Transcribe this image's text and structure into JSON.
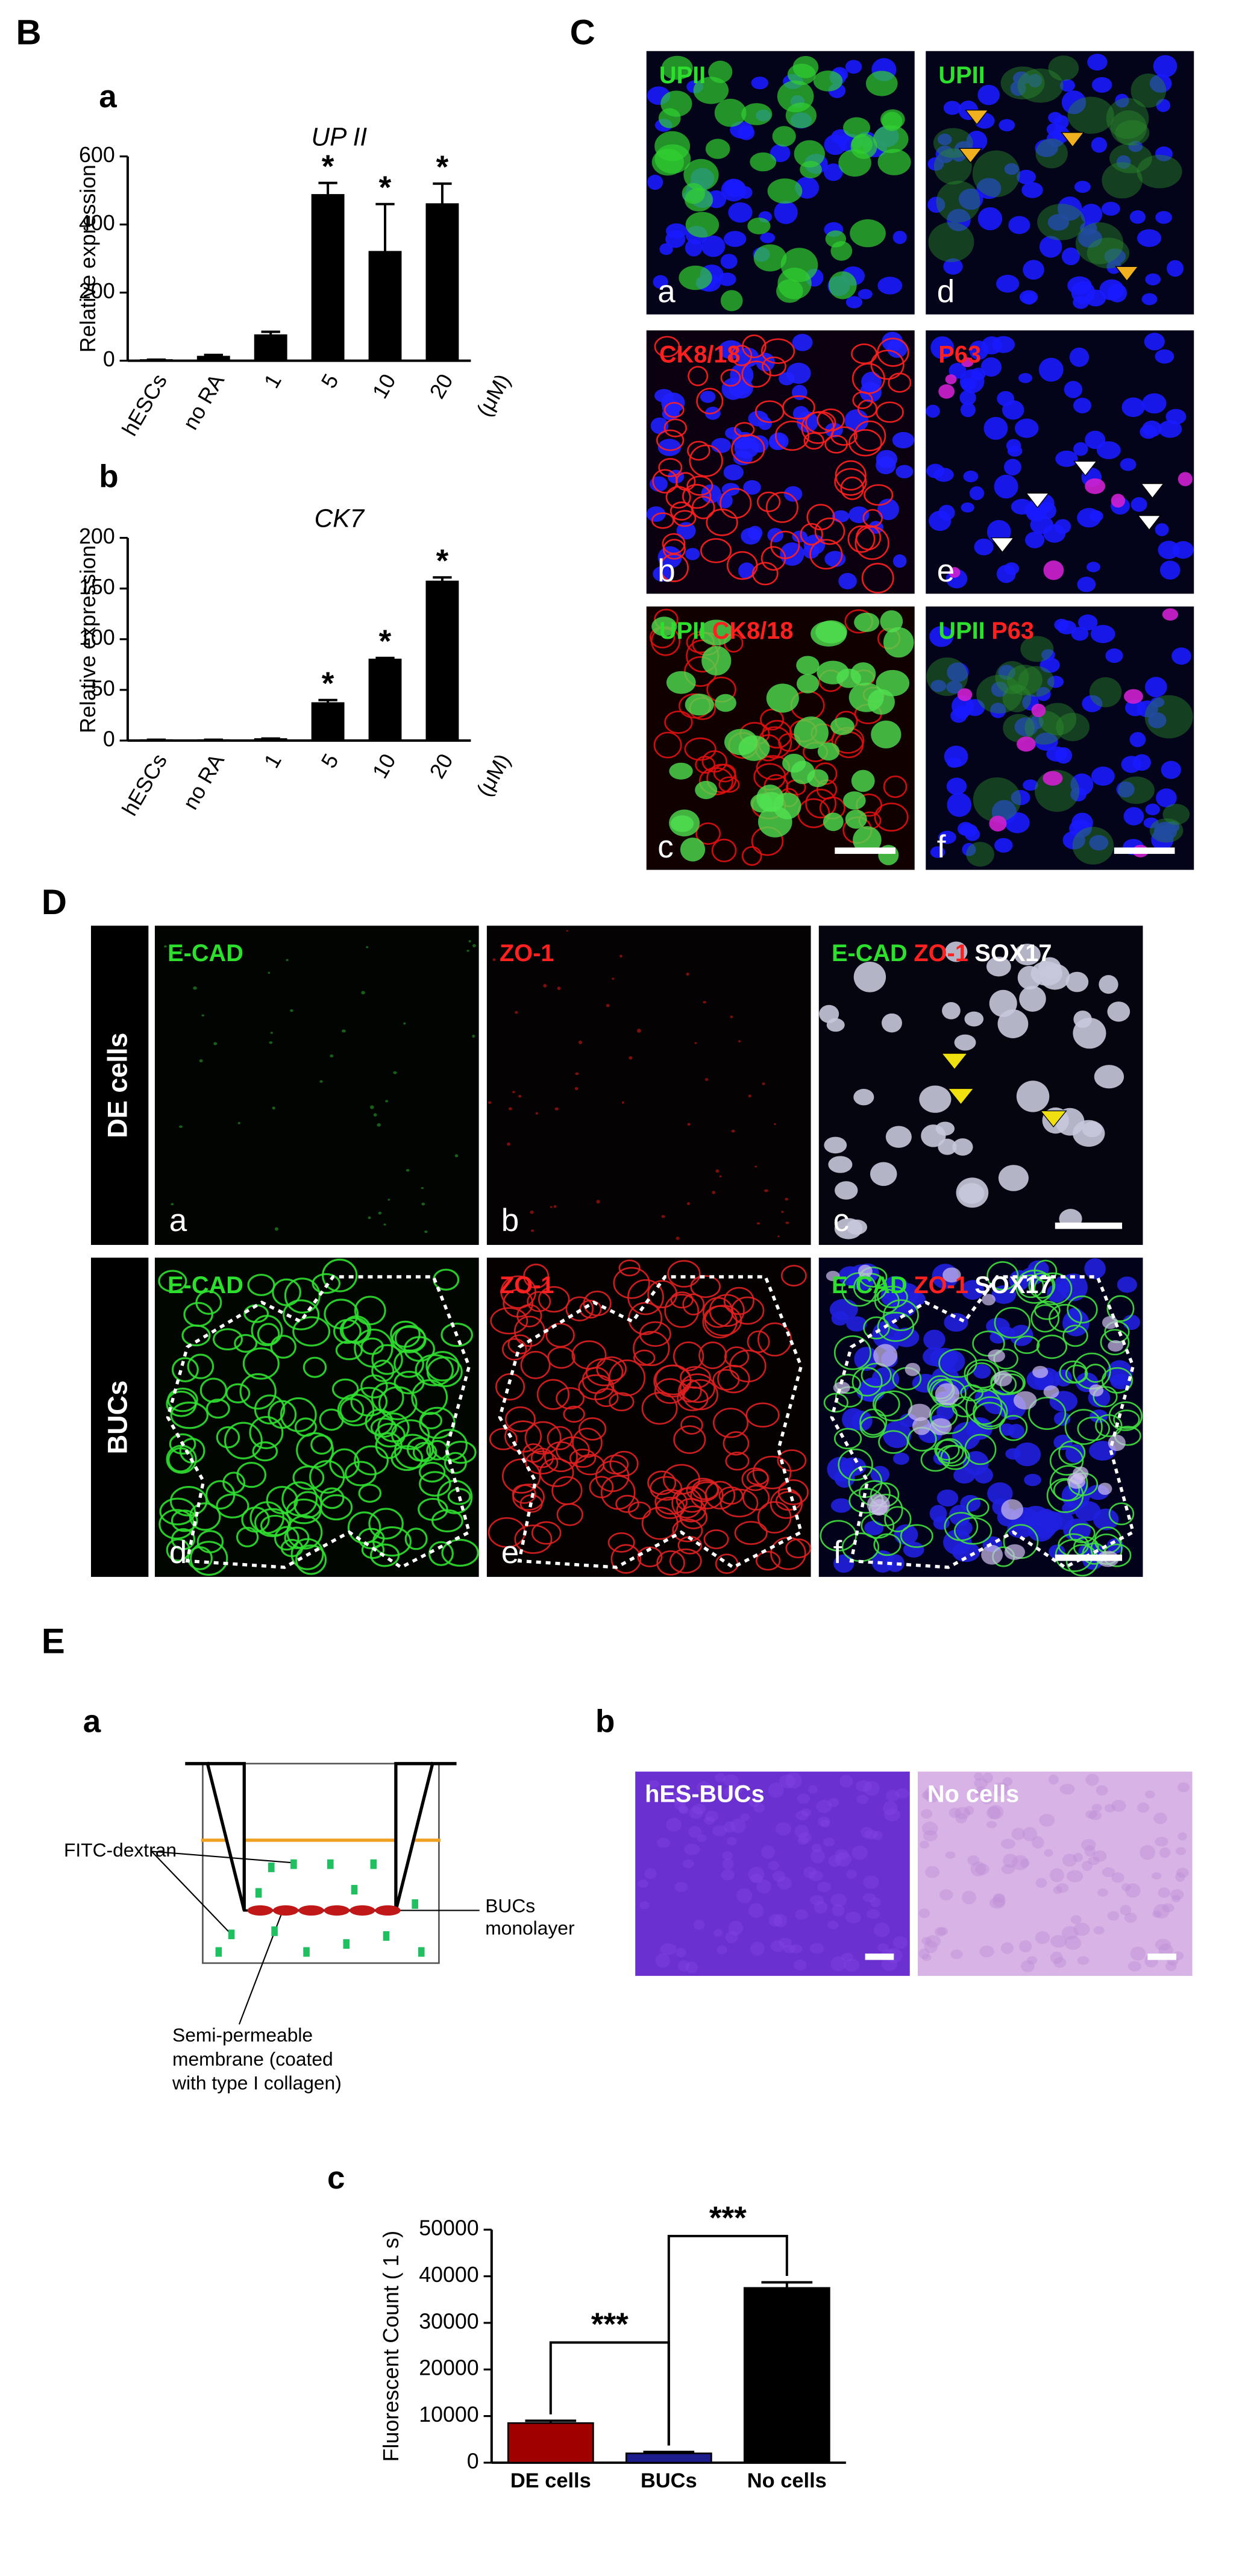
{
  "panel_labels": [
    "B",
    "C",
    "D",
    "E"
  ],
  "chart_data": [
    {
      "type": "bar",
      "panel": "a",
      "title": "UP II",
      "y_label": "Relative expression",
      "categories": [
        "hESCs",
        "no RA",
        "1",
        "5",
        "10",
        "20"
      ],
      "x_unit": "(μM)",
      "values": [
        2,
        12,
        75,
        487,
        320,
        460
      ],
      "errors": [
        1,
        5,
        10,
        35,
        140,
        60
      ],
      "significance": [
        null,
        null,
        null,
        "*",
        "*",
        "*"
      ],
      "color": "#000000",
      "ylim": [
        0,
        600
      ],
      "yticks": [
        0,
        200,
        400,
        600
      ]
    },
    {
      "type": "bar",
      "panel": "b",
      "title": "CK7",
      "y_label": "Relative expression",
      "categories": [
        "hESCs",
        "no RA",
        "1",
        "5",
        "10",
        "20"
      ],
      "x_unit": "(μM)",
      "values": [
        0.5,
        0.5,
        1.5,
        37,
        80,
        157
      ],
      "errors": [
        0.3,
        0.3,
        0.5,
        3,
        1.5,
        4
      ],
      "significance": [
        null,
        null,
        null,
        "*",
        "*",
        "*"
      ],
      "color": "#000000",
      "ylim": [
        0,
        200
      ],
      "yticks": [
        0,
        50,
        100,
        150,
        200
      ]
    },
    {
      "type": "bar",
      "panel": "c",
      "y_label": "Fluorescent Count ( 1 s)",
      "categories": [
        "DE cells",
        "BUCs",
        "No cells"
      ],
      "values": [
        8500,
        2000,
        37500
      ],
      "errors": [
        500,
        300,
        1200
      ],
      "colors": [
        "#a00000",
        "#1c1c8c",
        "#000000"
      ],
      "ylim": [
        0,
        50000
      ],
      "yticks": [
        0,
        10000,
        20000,
        30000,
        40000,
        50000
      ],
      "comparisons": [
        {
          "from": 0,
          "to": 1,
          "label": "***"
        },
        {
          "from": 1,
          "to": 2,
          "label": "***"
        }
      ]
    }
  ],
  "panel_C": {
    "images": [
      {
        "letter": "a",
        "labels": [
          {
            "text": "UPII",
            "color": "#2ee02e"
          }
        ]
      },
      {
        "letter": "d",
        "labels": [
          {
            "text": "UPII",
            "color": "#2ee02e"
          }
        ]
      },
      {
        "letter": "b",
        "labels": [
          {
            "text": "CK8/18",
            "color": "#ff2020"
          }
        ]
      },
      {
        "letter": "e",
        "labels": [
          {
            "text": "P63",
            "color": "#ff2020"
          }
        ]
      },
      {
        "letter": "c",
        "labels": [
          {
            "text": "UPII",
            "color": "#2ee02e"
          },
          {
            "text": "CK8/18",
            "color": "#ff2020"
          }
        ]
      },
      {
        "letter": "f",
        "labels": [
          {
            "text": "UPII",
            "color": "#2ee02e"
          },
          {
            "text": "P63",
            "color": "#ff2020"
          }
        ]
      }
    ]
  },
  "panel_D": {
    "rows": [
      "DE cells",
      "BUCs"
    ],
    "images": [
      {
        "letter": "a",
        "labels": [
          {
            "text": "E-CAD",
            "color": "#2ee02e"
          }
        ]
      },
      {
        "letter": "b",
        "labels": [
          {
            "text": "ZO-1",
            "color": "#ff2020"
          }
        ]
      },
      {
        "letter": "c",
        "labels": [
          {
            "text": "E-CAD",
            "color": "#2ee02e"
          },
          {
            "text": "ZO-1",
            "color": "#ff2020"
          },
          {
            "text": "SOX17",
            "color": "#ffffff"
          }
        ]
      },
      {
        "letter": "d",
        "labels": [
          {
            "text": "E-CAD",
            "color": "#2ee02e"
          }
        ]
      },
      {
        "letter": "e",
        "labels": [
          {
            "text": "ZO-1",
            "color": "#ff2020"
          }
        ]
      },
      {
        "letter": "f",
        "labels": [
          {
            "text": "E-CAD",
            "color": "#2ee02e"
          },
          {
            "text": "ZO-1",
            "color": "#ff2020"
          },
          {
            "text": "SOX17",
            "color": "#ffffff"
          }
        ]
      }
    ]
  },
  "panel_E": {
    "a": {
      "letter": "a",
      "fitc": "FITC-dextran",
      "monolayer": [
        "BUCs",
        "monolayer"
      ],
      "membrane": [
        "Semi-permeable",
        "membrane (coated",
        "with type I collagen)"
      ]
    },
    "b": {
      "letter": "b",
      "images": [
        "hES-BUCs",
        "No cells"
      ]
    }
  }
}
